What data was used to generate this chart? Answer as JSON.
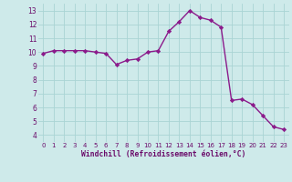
{
  "x": [
    0,
    1,
    2,
    3,
    4,
    5,
    6,
    7,
    8,
    9,
    10,
    11,
    12,
    13,
    14,
    15,
    16,
    17,
    18,
    19,
    20,
    21,
    22,
    23
  ],
  "y": [
    9.9,
    10.1,
    10.1,
    10.1,
    10.1,
    10.0,
    9.9,
    9.1,
    9.4,
    9.5,
    10.0,
    10.1,
    11.5,
    12.2,
    13.0,
    12.5,
    12.3,
    11.8,
    6.5,
    6.6,
    6.2,
    5.4,
    4.6,
    4.4
  ],
  "line_color": "#8b1a8b",
  "marker": "D",
  "marker_size": 2.2,
  "bg_color": "#ceeaea",
  "grid_color": "#aad4d4",
  "xlabel": "Windchill (Refroidissement éolien,°C)",
  "xlabel_color": "#6a0a6a",
  "tick_color": "#6a0a6a",
  "ylim": [
    3.5,
    13.5
  ],
  "xlim": [
    -0.5,
    23.5
  ],
  "yticks": [
    4,
    5,
    6,
    7,
    8,
    9,
    10,
    11,
    12,
    13
  ],
  "xticks": [
    0,
    1,
    2,
    3,
    4,
    5,
    6,
    7,
    8,
    9,
    10,
    11,
    12,
    13,
    14,
    15,
    16,
    17,
    18,
    19,
    20,
    21,
    22,
    23
  ],
  "linewidth": 1.0
}
